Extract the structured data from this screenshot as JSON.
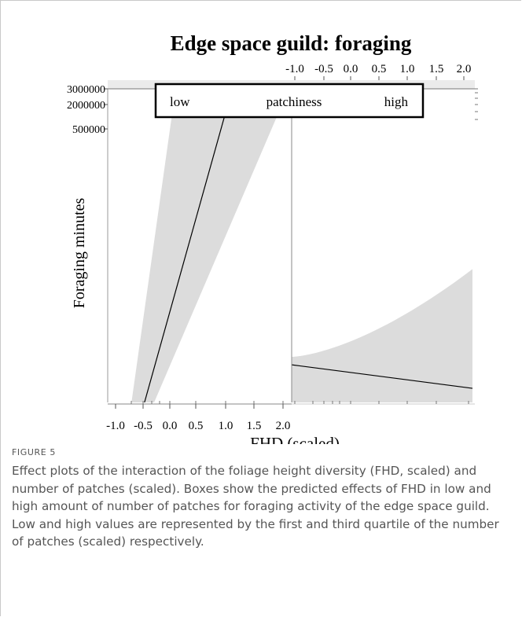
{
  "chart_data": {
    "type": "line",
    "title": "Edge space guild: foraging",
    "xlabel": "FHD (scaled)",
    "ylabel": "Foraging minutes",
    "strip": {
      "left_label": "low",
      "center_label": "patchiness",
      "right_label": "high"
    },
    "x_ticks": [
      "-1.0",
      "-0.5",
      "0.0",
      "0.5",
      "1.0",
      "1.5",
      "2.0"
    ],
    "y_ticks": [
      "3000000",
      "2000000",
      "500000"
    ],
    "xlim": [
      -1.2,
      2.05
    ],
    "panels": [
      {
        "name": "low",
        "x": [
          -0.55,
          1.0
        ],
        "y": [
          0,
          3000000
        ],
        "ci_lower": [
          -0.78,
          0.0
        ],
        "ci_upper": [
          -0.38,
          2.0
        ]
      },
      {
        "name": "high",
        "x": [
          -1.0,
          2.0
        ],
        "fit": [
          0.12,
          0.045
        ],
        "ci_lower": [
          0.0,
          0.0
        ],
        "ci_upper": [
          0.18,
          0.65
        ]
      }
    ],
    "grid": false,
    "legend": "none"
  },
  "caption": {
    "label": "FIGURE 5",
    "text": "Effect plots of the interaction of the foliage height diversity (FHD, scaled) and number of patches (scaled). Boxes show the predicted effects of FHD in low and high amount of number of patches for foraging activity of the edge space guild. Low and high values are represented by the first and third quartile of the number of patches (scaled) respectively."
  }
}
